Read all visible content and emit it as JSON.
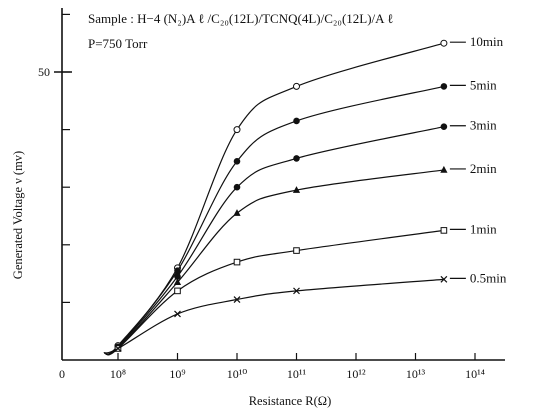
{
  "chart_data": {
    "type": "line",
    "xlabel": "Resistance R(Ω)",
    "ylabel": "Generated Voltage ν (mv)",
    "xscale": "log",
    "x_ticks": [
      {
        "value": 100000000.0,
        "label": "10⁸"
      },
      {
        "value": 1000000000.0,
        "label": "10⁹"
      },
      {
        "value": 10000000000.0,
        "label": "10¹⁰"
      },
      {
        "value": 100000000000.0,
        "label": "10¹¹"
      },
      {
        "value": 1000000000000.0,
        "label": "10¹²"
      },
      {
        "value": 10000000000000.0,
        "label": "10¹³"
      },
      {
        "value": 100000000000000.0,
        "label": "10¹⁴"
      }
    ],
    "x_origin_label": "0",
    "y_ticks": [
      {
        "value": 50,
        "label": "50"
      }
    ],
    "ylim": [
      0,
      60
    ],
    "annotations": [
      "Sample : H−4 (N₂)A ℓ /C₂₀(12L)/TCNQ(4L)/C₂₀(12L)/A ℓ",
      "P=750 Torr"
    ],
    "series": [
      {
        "name": "10min",
        "marker": "open-circle",
        "x": [
          100000000.0,
          1000000000.0,
          10000000000.0,
          100000000000.0,
          30000000000000.0
        ],
        "y": [
          2.5,
          16,
          40,
          47.5,
          55
        ]
      },
      {
        "name": "5min",
        "marker": "filled-circle",
        "x": [
          100000000.0,
          1000000000.0,
          10000000000.0,
          100000000000.0,
          30000000000000.0
        ],
        "y": [
          2.3,
          15.5,
          34.5,
          41.5,
          47.5
        ]
      },
      {
        "name": "3min",
        "marker": "filled-circle",
        "x": [
          100000000.0,
          1000000000.0,
          10000000000.0,
          100000000000.0,
          30000000000000.0
        ],
        "y": [
          2.2,
          14.5,
          30,
          35,
          40.5
        ]
      },
      {
        "name": "2min",
        "marker": "triangle",
        "x": [
          100000000.0,
          1000000000.0,
          10000000000.0,
          100000000000.0,
          30000000000000.0
        ],
        "y": [
          2,
          13.5,
          25.5,
          29.5,
          33
        ]
      },
      {
        "name": "1min",
        "marker": "square",
        "x": [
          100000000.0,
          1000000000.0,
          10000000000.0,
          100000000000.0,
          30000000000000.0
        ],
        "y": [
          2,
          12,
          17,
          19,
          22.5
        ]
      },
      {
        "name": "0.5min",
        "marker": "cross",
        "x": [
          100000000.0,
          1000000000.0,
          10000000000.0,
          100000000000.0,
          30000000000000.0
        ],
        "y": [
          2,
          8,
          10.5,
          12,
          14
        ]
      }
    ]
  }
}
